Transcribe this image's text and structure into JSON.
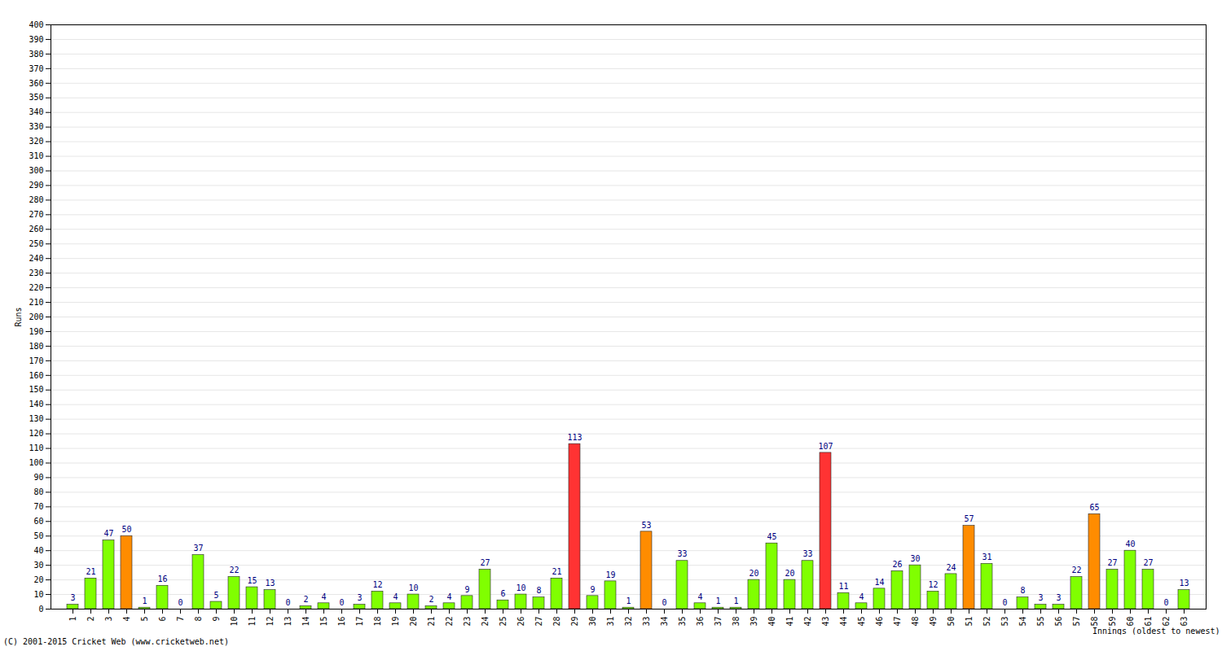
{
  "chart_data": {
    "type": "bar",
    "caption": "(C) 2001-2015 Cricket Web (www.cricketweb.net)",
    "x_label": "Innings (oldest to newest)",
    "y_label": "Runs",
    "categories": [
      "1",
      "2",
      "3",
      "4",
      "5",
      "6",
      "7",
      "8",
      "9",
      "10",
      "11",
      "12",
      "13",
      "14",
      "15",
      "16",
      "17",
      "18",
      "19",
      "20",
      "21",
      "22",
      "23",
      "24",
      "25",
      "26",
      "27",
      "28",
      "29",
      "30",
      "31",
      "32",
      "33",
      "34",
      "35",
      "36",
      "37",
      "38",
      "39",
      "40",
      "41",
      "42",
      "43",
      "44",
      "45",
      "46",
      "47",
      "48",
      "49",
      "50",
      "51",
      "52",
      "53",
      "54",
      "55",
      "56",
      "57",
      "58",
      "59",
      "60",
      "61",
      "62",
      "63"
    ],
    "values": [
      3,
      21,
      47,
      50,
      1,
      16,
      0,
      37,
      5,
      22,
      15,
      13,
      0,
      2,
      4,
      0,
      3,
      12,
      4,
      10,
      2,
      4,
      9,
      27,
      6,
      10,
      8,
      21,
      113,
      9,
      19,
      1,
      53,
      0,
      33,
      4,
      1,
      1,
      20,
      45,
      20,
      33,
      107,
      11,
      4,
      14,
      26,
      30,
      12,
      24,
      57,
      31,
      0,
      8,
      3,
      3,
      22,
      65,
      27,
      40,
      27,
      0,
      13
    ],
    "colors": [
      "#80ff00",
      "#80ff00",
      "#80ff00",
      "#ff8c00",
      "#80ff00",
      "#80ff00",
      "#80ff00",
      "#80ff00",
      "#80ff00",
      "#80ff00",
      "#80ff00",
      "#80ff00",
      "#80ff00",
      "#80ff00",
      "#80ff00",
      "#80ff00",
      "#80ff00",
      "#80ff00",
      "#80ff00",
      "#80ff00",
      "#80ff00",
      "#80ff00",
      "#80ff00",
      "#80ff00",
      "#80ff00",
      "#80ff00",
      "#80ff00",
      "#80ff00",
      "#ff3333",
      "#80ff00",
      "#80ff00",
      "#80ff00",
      "#ff8c00",
      "#80ff00",
      "#80ff00",
      "#80ff00",
      "#80ff00",
      "#80ff00",
      "#80ff00",
      "#80ff00",
      "#80ff00",
      "#80ff00",
      "#ff3333",
      "#80ff00",
      "#80ff00",
      "#80ff00",
      "#80ff00",
      "#80ff00",
      "#80ff00",
      "#80ff00",
      "#ff8c00",
      "#80ff00",
      "#80ff00",
      "#80ff00",
      "#80ff00",
      "#80ff00",
      "#80ff00",
      "#ff8c00",
      "#80ff00",
      "#80ff00",
      "#80ff00",
      "#80ff00",
      "#80ff00"
    ],
    "ylim": [
      0,
      400
    ],
    "yticks": [
      0,
      10,
      20,
      30,
      40,
      50,
      60,
      70,
      80,
      90,
      100,
      110,
      120,
      130,
      140,
      150,
      160,
      170,
      180,
      190,
      200,
      210,
      220,
      230,
      240,
      250,
      260,
      270,
      280,
      290,
      300,
      310,
      320,
      330,
      340,
      350,
      360,
      370,
      380,
      390,
      400
    ],
    "grid": true,
    "data_labels": true
  }
}
